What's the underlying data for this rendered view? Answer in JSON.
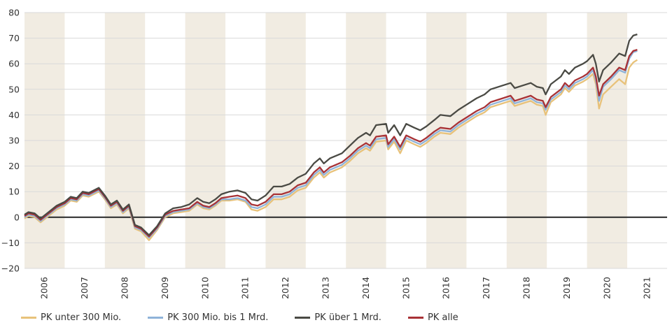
{
  "chart_data": {
    "type": "line",
    "title": "",
    "xlabel": "",
    "ylabel": "",
    "ylim": [
      -20,
      80
    ],
    "yticks": [
      -20,
      -10,
      0,
      10,
      20,
      30,
      40,
      50,
      60,
      70,
      80
    ],
    "xlim": [
      2006,
      2022
    ],
    "xtick_labels": [
      "2006",
      "2007",
      "2008",
      "2009",
      "2010",
      "2011",
      "2012",
      "2013",
      "2014",
      "2015",
      "2016",
      "2017",
      "2018",
      "2019",
      "2020",
      "2021"
    ],
    "shaded_years": [
      2006,
      2008,
      2010,
      2012,
      2014,
      2016,
      2018,
      2020
    ],
    "grid": true,
    "legend_position": "bottom",
    "x": [
      2006.0,
      2006.1,
      2006.25,
      2006.4,
      2006.6,
      2006.8,
      2007.0,
      2007.15,
      2007.3,
      2007.45,
      2007.6,
      2007.85,
      2008.0,
      2008.15,
      2008.3,
      2008.45,
      2008.6,
      2008.75,
      2008.9,
      2009.1,
      2009.3,
      2009.5,
      2009.7,
      2009.9,
      2010.1,
      2010.3,
      2010.45,
      2010.6,
      2010.75,
      2010.9,
      2011.1,
      2011.3,
      2011.5,
      2011.65,
      2011.8,
      2012.0,
      2012.2,
      2012.4,
      2012.6,
      2012.8,
      2013.0,
      2013.2,
      2013.35,
      2013.45,
      2013.6,
      2013.9,
      2014.1,
      2014.3,
      2014.5,
      2014.6,
      2014.75,
      2015.0,
      2015.05,
      2015.2,
      2015.35,
      2015.5,
      2015.7,
      2015.85,
      2016.0,
      2016.2,
      2016.35,
      2016.6,
      2016.8,
      2017.0,
      2017.25,
      2017.45,
      2017.6,
      2017.9,
      2018.1,
      2018.2,
      2018.4,
      2018.6,
      2018.75,
      2018.9,
      2018.97,
      2019.1,
      2019.35,
      2019.45,
      2019.55,
      2019.7,
      2019.9,
      2020.0,
      2020.15,
      2020.22,
      2020.3,
      2020.4,
      2020.6,
      2020.8,
      2020.95,
      2021.05,
      2021.15,
      2021.25
    ],
    "series": [
      {
        "name": "PK unter 300 Mio.",
        "color": "#e8c27a",
        "values": [
          -0.5,
          0.5,
          0,
          -2,
          0.5,
          3,
          4.5,
          6.5,
          6,
          8.5,
          8,
          10,
          7,
          3.5,
          5,
          1.5,
          3.5,
          -4.5,
          -5.5,
          -9,
          -5,
          0,
          1.5,
          2,
          2.5,
          5,
          3.5,
          3,
          4.5,
          6.5,
          6.5,
          7,
          6,
          3,
          2.5,
          4,
          7,
          7,
          8,
          10.5,
          11.5,
          15.5,
          17.5,
          15.5,
          17.5,
          19.5,
          22,
          25,
          27,
          26,
          29.5,
          30,
          26.5,
          29.5,
          25,
          30,
          28.5,
          27.5,
          29,
          31.5,
          33,
          32.5,
          35,
          37,
          39.5,
          41,
          43,
          44.5,
          45.5,
          43.5,
          44.5,
          45.5,
          44,
          43.5,
          40,
          45,
          48,
          50.5,
          49,
          51.5,
          53,
          54,
          56,
          52,
          42.5,
          48,
          51,
          54,
          52,
          58.5,
          60.5,
          61.5
        ]
      },
      {
        "name": "PK 300 Mio. bis 1 Mrd.",
        "color": "#8fb3d9",
        "values": [
          0,
          1,
          0.5,
          -1.5,
          1,
          3.5,
          5,
          7,
          6.5,
          9,
          8.5,
          10.5,
          7.5,
          4,
          5.5,
          2,
          4,
          -4,
          -5,
          -8,
          -4.5,
          0.5,
          2,
          2.5,
          3,
          5.5,
          4,
          3.5,
          5,
          7,
          7,
          7.5,
          6.5,
          4,
          3.5,
          5,
          8,
          8,
          9,
          11.5,
          12.5,
          16.5,
          18.5,
          16.5,
          18.5,
          20.5,
          23,
          26,
          28,
          27,
          30.5,
          31,
          27.5,
          30.5,
          26.5,
          31,
          29.5,
          28.5,
          30,
          32.5,
          34,
          33.5,
          36,
          38,
          40.5,
          42,
          44,
          45.5,
          46.5,
          44.5,
          45.5,
          46.5,
          45,
          44.5,
          42,
          46,
          49,
          51.5,
          50,
          52.5,
          54,
          55,
          57.5,
          53.5,
          45.5,
          51,
          54,
          57.5,
          56.5,
          62,
          64.5,
          65
        ]
      },
      {
        "name": "PK über 1 Mrd.",
        "color": "#4a4a44",
        "values": [
          1,
          2,
          1.5,
          -0.5,
          2,
          4.5,
          6,
          8,
          7.5,
          10,
          9.5,
          11.5,
          8.5,
          5,
          6.5,
          3,
          5,
          -3,
          -4,
          -7,
          -3.5,
          1.5,
          3.5,
          4,
          5,
          7.5,
          6,
          5.5,
          7,
          9,
          10,
          10.5,
          9.5,
          7,
          6.5,
          8.5,
          12,
          12,
          13,
          15.5,
          17,
          21,
          23,
          21,
          23,
          25,
          28,
          31,
          33,
          32,
          36,
          36.5,
          33,
          36,
          32,
          36.5,
          35,
          34,
          35.5,
          38,
          40,
          39.5,
          42,
          44,
          46.5,
          48,
          50,
          51.5,
          52.5,
          50.5,
          51.5,
          52.5,
          51,
          50.5,
          48,
          52,
          55,
          57.5,
          56,
          58.5,
          60,
          61,
          63.5,
          60,
          53,
          57.5,
          60.5,
          64,
          63,
          69,
          71,
          71.5
        ]
      },
      {
        "name": "PK alle",
        "color": "#a83236",
        "values": [
          0.5,
          1.5,
          1,
          -1,
          1.5,
          4,
          5.5,
          7.5,
          7,
          9.5,
          9,
          11,
          8,
          4.5,
          6,
          2.5,
          4.5,
          -3.5,
          -4.5,
          -7.5,
          -4,
          1,
          2.5,
          3,
          3.5,
          6,
          4.5,
          4,
          5.5,
          7.5,
          8,
          8.5,
          7.5,
          5,
          4.5,
          6,
          9,
          9,
          10,
          12.5,
          13.5,
          17.5,
          19.5,
          17.5,
          19.5,
          21.5,
          24,
          27,
          29,
          28,
          31.5,
          32,
          28.5,
          31.5,
          27.5,
          32,
          30.5,
          29.5,
          31,
          33.5,
          35,
          34.5,
          37,
          39,
          41.5,
          43,
          45,
          46.5,
          47.5,
          45.5,
          46.5,
          47.5,
          46,
          45.5,
          43,
          47,
          50,
          52.5,
          51,
          53.5,
          55,
          56,
          58.5,
          55,
          47.5,
          52,
          55,
          58.5,
          57.5,
          63,
          65,
          65.5
        ]
      }
    ]
  }
}
